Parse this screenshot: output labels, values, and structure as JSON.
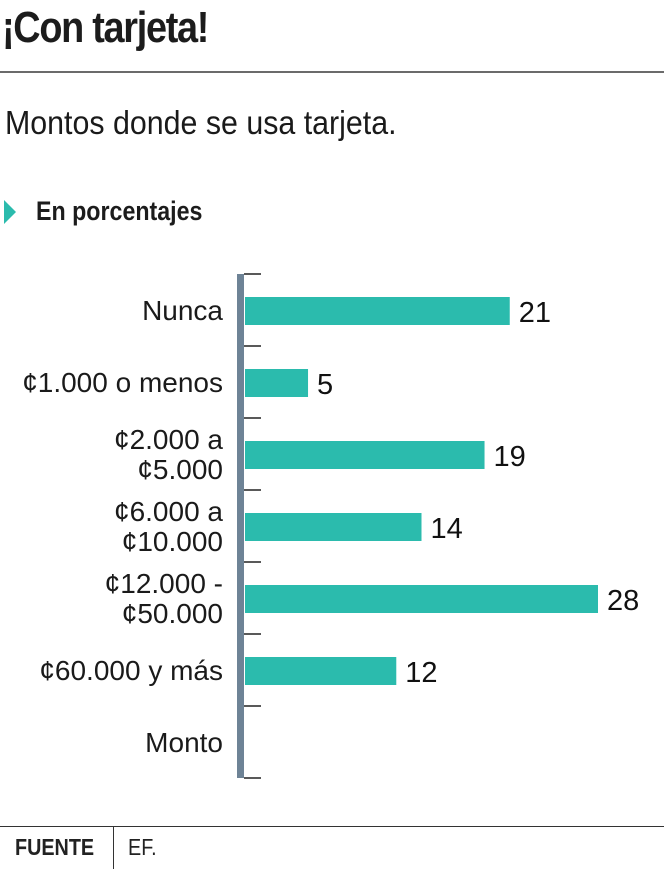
{
  "header": {
    "title": "¡Con tarjeta!",
    "subtitle": "Montos donde se usa tarjeta.",
    "unit_label": "En porcentajes",
    "unit_icon": "triangle-right-icon"
  },
  "colors": {
    "bar": "#2bbbad",
    "axis": "#6e8396",
    "tick": "#222222",
    "text": "#1a1a1a"
  },
  "chart_data": {
    "type": "bar",
    "orientation": "horizontal",
    "title": "¡Con tarjeta!",
    "subtitle": "Montos donde se usa tarjeta.",
    "unit": "En porcentajes",
    "ylabel": "Monto",
    "xlabel": "",
    "categories": [
      [
        "Nunca"
      ],
      [
        "¢1.000 o menos"
      ],
      [
        "¢2.000 a",
        "¢5.000"
      ],
      [
        "¢6.000 a",
        "¢10.000"
      ],
      [
        "¢12.000 -",
        "¢50.000"
      ],
      [
        "¢60.000 y más"
      ]
    ],
    "values": [
      21,
      5,
      19,
      14,
      28,
      12
    ],
    "value_labels": [
      "21",
      "5",
      "19",
      "14",
      "28",
      "12"
    ],
    "xlim": [
      0,
      28
    ],
    "grid": false,
    "legend": "none"
  },
  "footer": {
    "source_key": "FUENTE",
    "source_value": "EF."
  }
}
